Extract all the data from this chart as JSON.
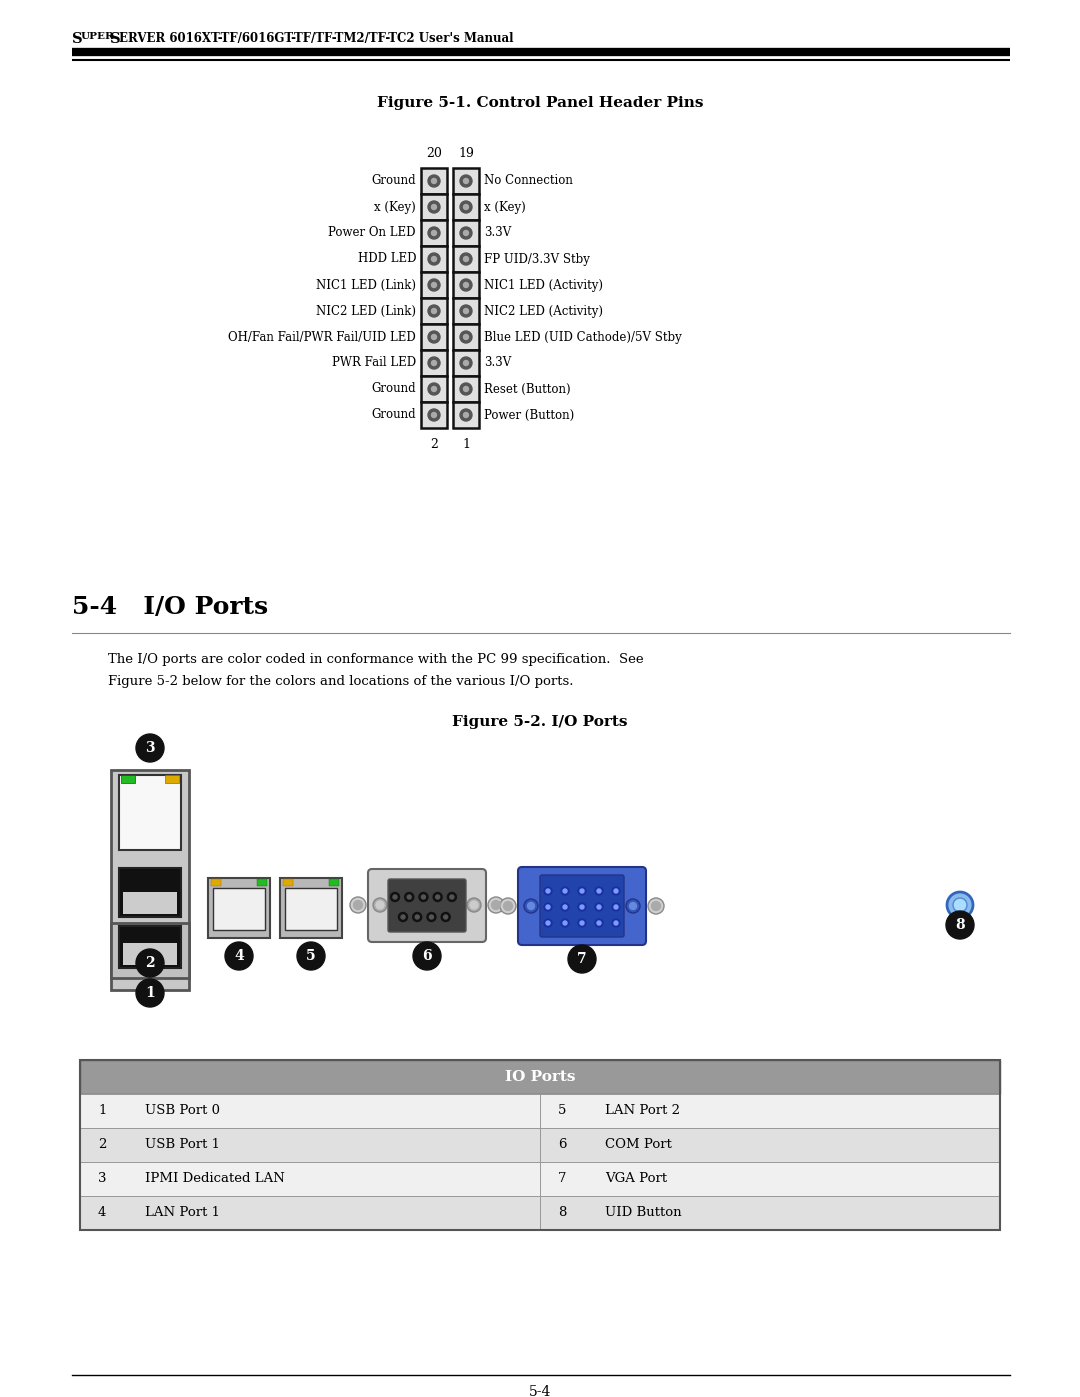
{
  "page_title_super": "Super",
  "page_title_rest": "Server 6016XT-TF/6016GT-TF/TF-TM2/TF-TC2 User's Manual",
  "fig1_title": "Figure 5-1. Control Panel Header Pins",
  "pin_rows": [
    {
      "left": "Ground",
      "right": "No Connection"
    },
    {
      "left": "x (Key)",
      "right": "x (Key)"
    },
    {
      "left": "Power On LED",
      "right": "3.3V"
    },
    {
      "left": "HDD LED",
      "right": "FP UID/3.3V Stby"
    },
    {
      "left": "NIC1 LED (Link)",
      "right": "NIC1 LED (Activity)"
    },
    {
      "left": "NIC2 LED (Link)",
      "right": "NIC2 LED (Activity)"
    },
    {
      "left": "OH/Fan Fail/PWR Fail/UID LED",
      "right": "Blue LED (UID Cathode)/5V Stby"
    },
    {
      "left": "PWR Fail LED",
      "right": "3.3V"
    },
    {
      "left": "Ground",
      "right": "Reset (Button)"
    },
    {
      "left": "Ground",
      "right": "Power (Button)"
    }
  ],
  "col_num_top_left": "20",
  "col_num_top_right": "19",
  "col_num_bot_left": "2",
  "col_num_bot_right": "1",
  "section_title": "5-4   I/O Ports",
  "section_text_line1": "The I/O ports are color coded in conformance with the PC 99 specification.  See",
  "section_text_line2": "Figure 5-2 below for the colors and locations of the various I/O ports.",
  "fig2_title": "Figure 5-2. I/O Ports",
  "io_table_header": "IO Ports",
  "io_table_rows": [
    [
      "1",
      "USB Port 0",
      "5",
      "LAN Port 2"
    ],
    [
      "2",
      "USB Port 1",
      "6",
      "COM Port"
    ],
    [
      "3",
      "IPMI Dedicated LAN",
      "7",
      "VGA Port"
    ],
    [
      "4",
      "LAN Port 1",
      "8",
      "UID Button"
    ]
  ],
  "page_num": "5-4",
  "bg_color": "#ffffff",
  "text_color": "#000000",
  "pin_box_fill": "#e0e0e0",
  "pin_box_edge": "#111111",
  "dot_outer": "#555555",
  "dot_inner": "#aaaaaa"
}
